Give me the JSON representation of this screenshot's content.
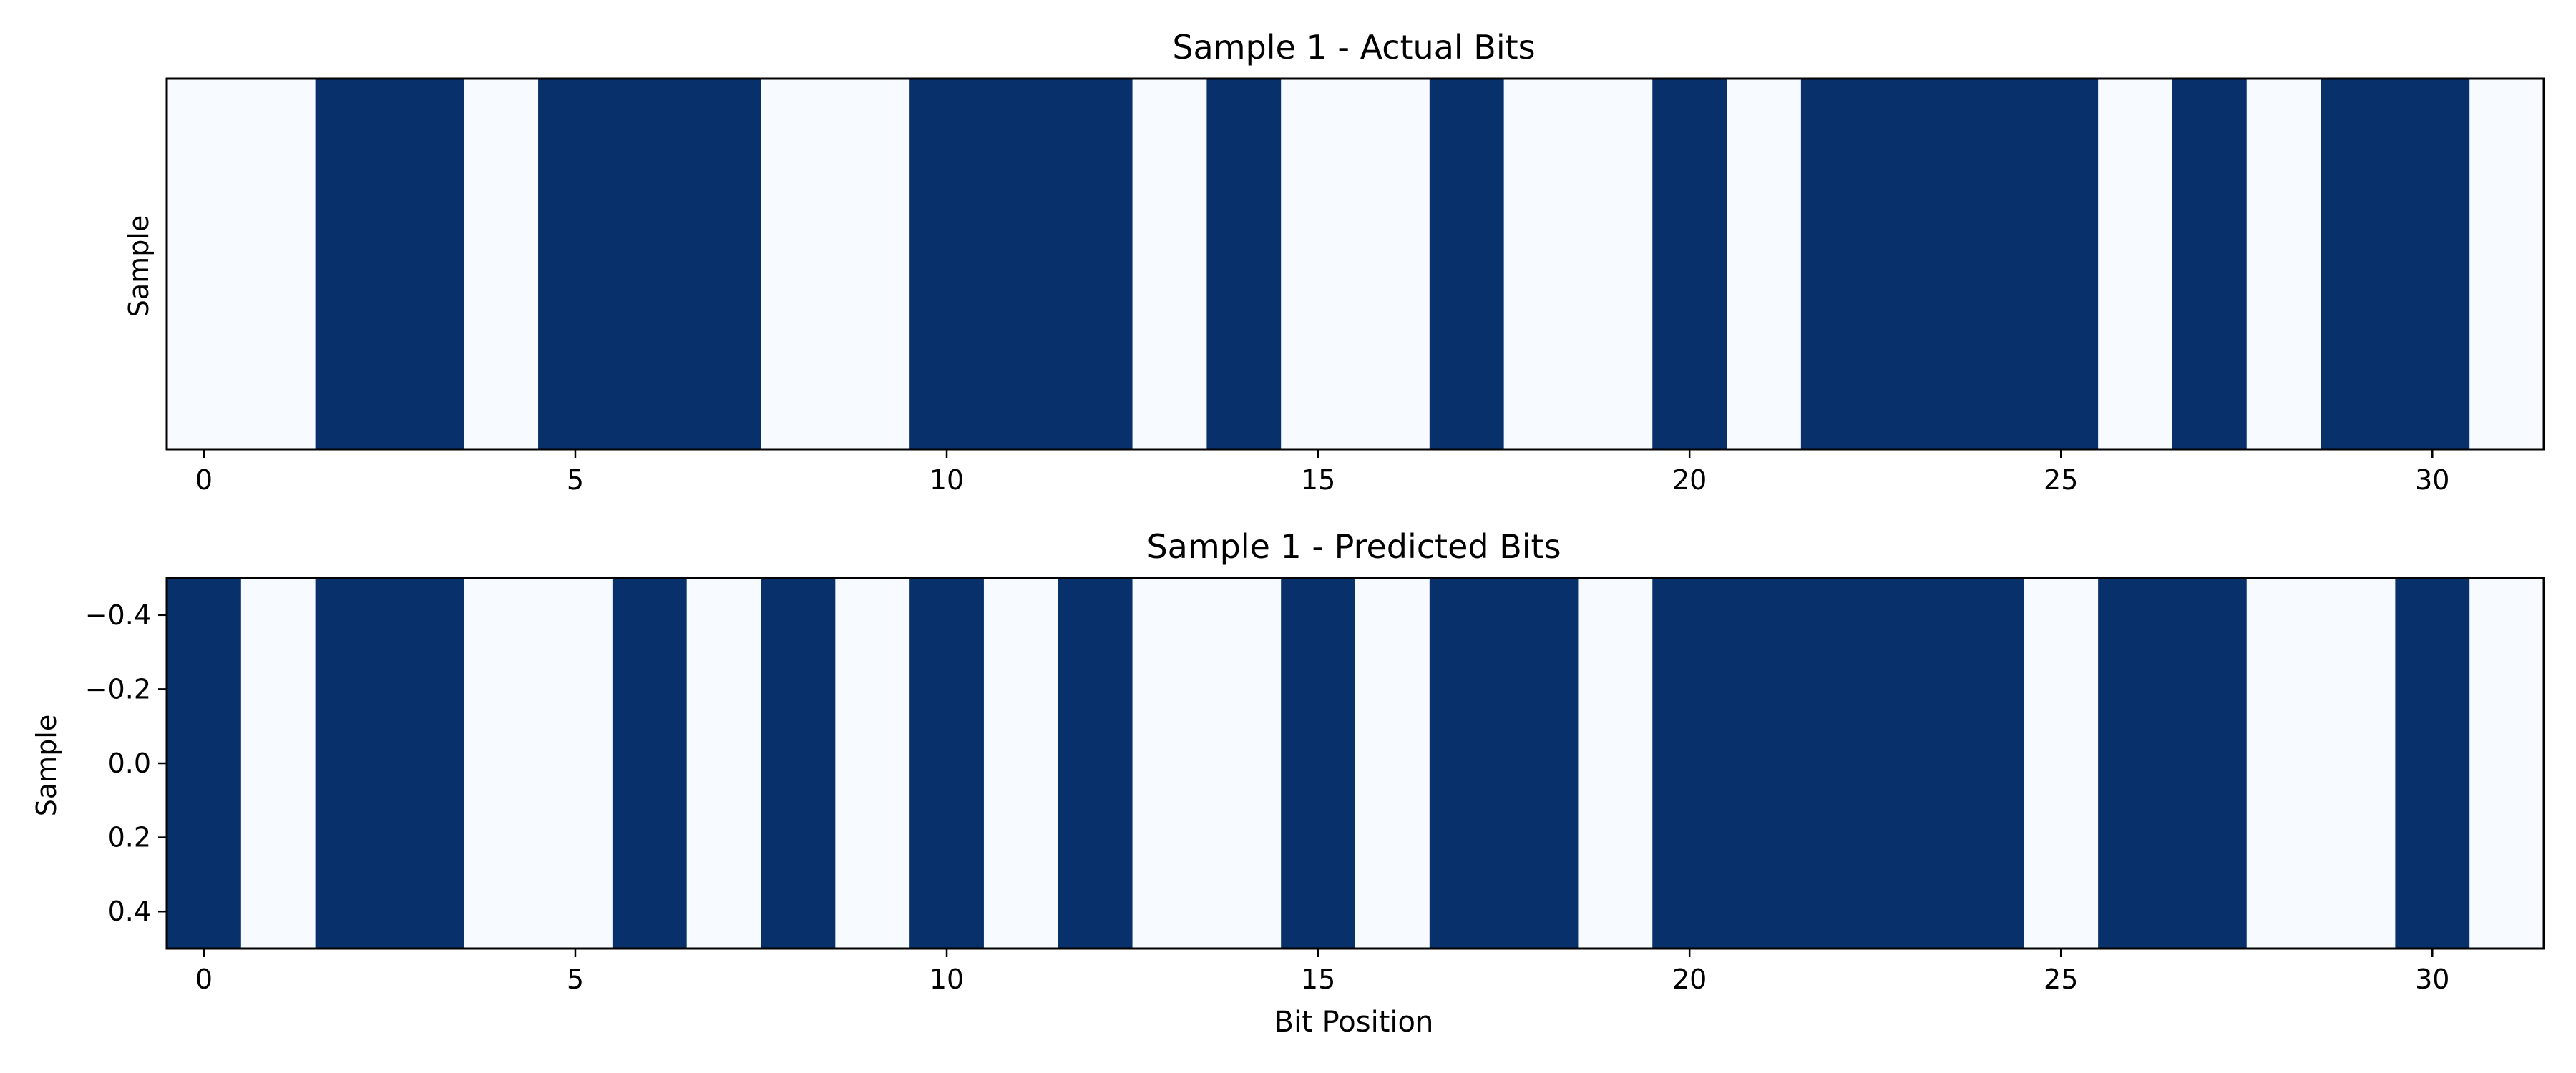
{
  "chart_data": [
    {
      "type": "heatmap",
      "title": "Sample 1 - Actual Bits",
      "xlabel": "",
      "ylabel": "Sample",
      "x_ticks": [
        0,
        5,
        10,
        15,
        20,
        25,
        30
      ],
      "y_ticks": [],
      "xlim": [
        -0.5,
        31.5
      ],
      "ylim": [
        0.5,
        -0.5
      ],
      "bits": [
        0,
        0,
        1,
        1,
        0,
        1,
        1,
        1,
        0,
        0,
        1,
        1,
        1,
        0,
        1,
        0,
        0,
        1,
        0,
        0,
        1,
        0,
        1,
        1,
        1,
        1,
        0,
        1,
        0,
        1,
        1,
        0
      ],
      "colors": {
        "0": "#f7fbff",
        "1": "#08306b"
      }
    },
    {
      "type": "heatmap",
      "title": "Sample 1 - Predicted Bits",
      "xlabel": "Bit Position",
      "ylabel": "Sample",
      "x_ticks": [
        0,
        5,
        10,
        15,
        20,
        25,
        30
      ],
      "y_ticks": [
        -0.4,
        -0.2,
        0.0,
        0.2,
        0.4
      ],
      "xlim": [
        -0.5,
        31.5
      ],
      "ylim": [
        0.5,
        -0.5
      ],
      "bits": [
        1,
        0,
        1,
        1,
        0,
        0,
        1,
        0,
        1,
        0,
        1,
        0,
        1,
        0,
        0,
        1,
        0,
        1,
        1,
        0,
        1,
        1,
        1,
        1,
        1,
        0,
        1,
        1,
        0,
        0,
        1,
        0
      ],
      "colors": {
        "0": "#f7fbff",
        "1": "#08306b"
      }
    }
  ]
}
